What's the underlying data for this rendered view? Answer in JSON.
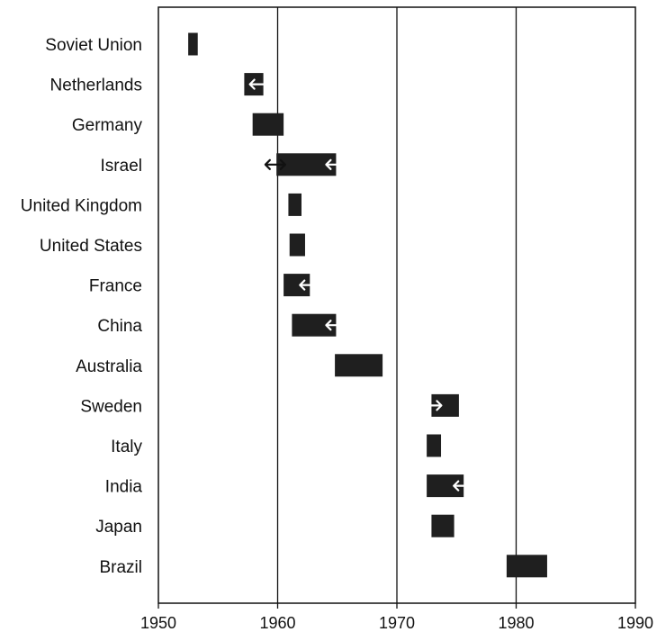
{
  "chart_data": {
    "type": "bar",
    "orientation": "horizontal-range",
    "title": "",
    "xlabel": "",
    "ylabel": "",
    "xlim": [
      1950,
      1990
    ],
    "xticks": [
      1950,
      1960,
      1970,
      1980,
      1990
    ],
    "gridlines_x": [
      1960,
      1970,
      1980
    ],
    "categories": [
      "Soviet Union",
      "Netherlands",
      "Germany",
      "Israel",
      "United Kingdom",
      "United States",
      "France",
      "China",
      "Australia",
      "Sweden",
      "Italy",
      "India",
      "Japan",
      "Brazil"
    ],
    "ranges": [
      {
        "category": "Soviet Union",
        "start": 1952.5,
        "end": 1953.3,
        "arrows": []
      },
      {
        "category": "Netherlands",
        "start": 1957.2,
        "end": 1958.8,
        "arrows": [
          1958.5
        ]
      },
      {
        "category": "Germany",
        "start": 1957.9,
        "end": 1960.5,
        "arrows": []
      },
      {
        "category": "Israel",
        "start": 1959.9,
        "end": 1964.9,
        "arrows": [
          1959.8,
          1964.9
        ]
      },
      {
        "category": "United Kingdom",
        "start": 1960.9,
        "end": 1962.0,
        "arrows": []
      },
      {
        "category": "United States",
        "start": 1961.0,
        "end": 1962.3,
        "arrows": []
      },
      {
        "category": "France",
        "start": 1960.5,
        "end": 1962.7,
        "arrows": [
          1962.7
        ]
      },
      {
        "category": "China",
        "start": 1961.2,
        "end": 1964.9,
        "arrows": [
          1964.9
        ]
      },
      {
        "category": "Australia",
        "start": 1964.8,
        "end": 1968.8,
        "arrows": []
      },
      {
        "category": "Sweden",
        "start": 1972.9,
        "end": 1975.2,
        "arrows": [
          1972.9
        ]
      },
      {
        "category": "Italy",
        "start": 1972.5,
        "end": 1973.7,
        "arrows": []
      },
      {
        "category": "India",
        "start": 1972.5,
        "end": 1975.6,
        "arrows": [
          1975.6
        ]
      },
      {
        "category": "Japan",
        "start": 1972.9,
        "end": 1974.8,
        "arrows": []
      },
      {
        "category": "Brazil",
        "start": 1979.2,
        "end": 1982.6,
        "arrows": []
      }
    ],
    "colors": {
      "bar": "#1f1f1f",
      "arrow_on_bar": "#ffffff",
      "arrow_off_bar": "#111111",
      "axis": "#111111"
    }
  }
}
